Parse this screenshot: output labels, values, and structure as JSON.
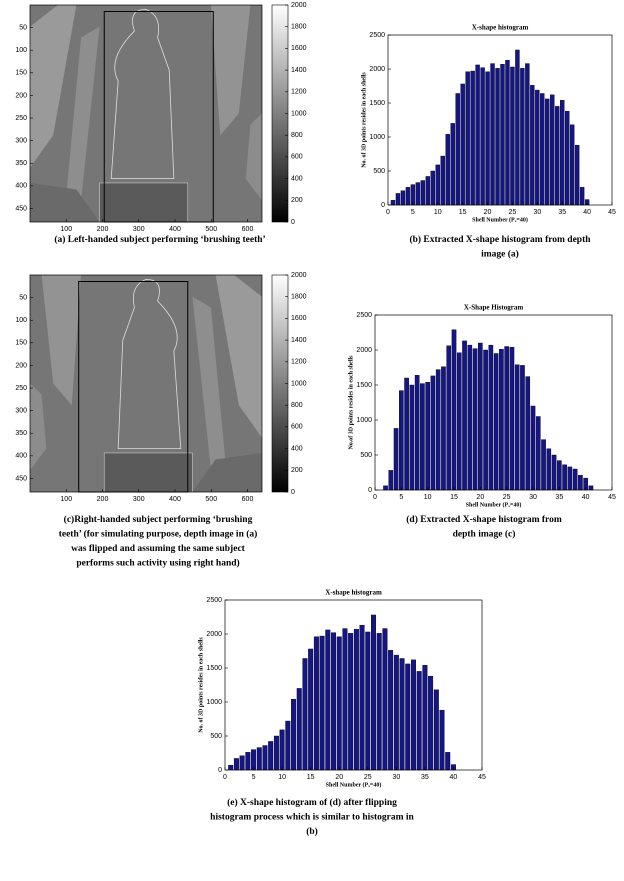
{
  "chart_data": [
    {
      "type": "image",
      "caption": [
        "(a) Left-handed subject performing ‘brushing teeth’"
      ],
      "xlim": [
        0,
        640
      ],
      "ylim": [
        480,
        0
      ],
      "xticks": [
        100,
        200,
        300,
        400,
        500,
        600
      ],
      "yticks": [
        50,
        100,
        150,
        200,
        250,
        300,
        350,
        400,
        450
      ],
      "clim": [
        0,
        2000
      ],
      "cticks": [
        0,
        200,
        400,
        600,
        800,
        1000,
        1200,
        1400,
        1600,
        1800,
        2000
      ],
      "flipped": false
    },
    {
      "type": "bar",
      "title": "X-shape histogram",
      "xlabel": "Shell Number (Pₓ=40)",
      "ylabel": "No. of 3D points resides in each shells",
      "caption": [
        "(b) Extracted X-shape histogram from depth",
        "image (a)"
      ],
      "color": "#15158a",
      "x": [
        1,
        2,
        3,
        4,
        5,
        6,
        7,
        8,
        9,
        10,
        11,
        12,
        13,
        14,
        15,
        16,
        17,
        18,
        19,
        20,
        21,
        22,
        23,
        24,
        25,
        26,
        27,
        28,
        29,
        30,
        31,
        32,
        33,
        34,
        35,
        36,
        37,
        38,
        39,
        40
      ],
      "values": [
        70,
        170,
        210,
        260,
        300,
        330,
        360,
        420,
        500,
        590,
        720,
        1040,
        1200,
        1640,
        1780,
        1960,
        1970,
        2060,
        2020,
        1960,
        2080,
        2010,
        2070,
        2130,
        2030,
        2280,
        2010,
        2080,
        1760,
        1690,
        1640,
        1560,
        1620,
        1450,
        1540,
        1380,
        1180,
        880,
        260,
        80
      ],
      "xlim": [
        0,
        45
      ],
      "ylim": [
        0,
        2500
      ],
      "xticks": [
        0,
        5,
        10,
        15,
        20,
        25,
        30,
        35,
        40,
        45
      ],
      "yticks": [
        0,
        500,
        1000,
        1500,
        2000,
        2500
      ]
    },
    {
      "type": "image",
      "caption": [
        "(c)Right-handed subject performing ‘brushing",
        "teeth’ (for simulating purpose, depth image in (a)",
        "was flipped and assuming the same subject",
        "performs such activity using right hand)"
      ],
      "xlim": [
        0,
        640
      ],
      "ylim": [
        480,
        0
      ],
      "xticks": [
        100,
        200,
        300,
        400,
        500,
        600
      ],
      "yticks": [
        50,
        100,
        150,
        200,
        250,
        300,
        350,
        400,
        450
      ],
      "clim": [
        0,
        2000
      ],
      "cticks": [
        0,
        200,
        400,
        600,
        800,
        1000,
        1200,
        1400,
        1600,
        1800,
        2000
      ],
      "flipped": true
    },
    {
      "type": "bar",
      "title": "X-Shape Histogram",
      "xlabel": "Shell Number (Pₓ=40)",
      "ylabel": "No.of 3D points resides in each shells",
      "caption": [
        "(d) Extracted X-shape histogram from",
        "depth image (c)"
      ],
      "color": "#15158a",
      "x": [
        2,
        3,
        4,
        5,
        6,
        7,
        8,
        9,
        10,
        11,
        12,
        13,
        14,
        15,
        16,
        17,
        18,
        19,
        20,
        21,
        22,
        23,
        24,
        25,
        26,
        27,
        28,
        29,
        30,
        31,
        32,
        33,
        34,
        35,
        36,
        37,
        38,
        39,
        40,
        41
      ],
      "values": [
        60,
        280,
        880,
        1420,
        1600,
        1500,
        1640,
        1520,
        1540,
        1630,
        1720,
        1760,
        2060,
        2290,
        1960,
        2130,
        2070,
        2020,
        2100,
        2000,
        2070,
        1950,
        2010,
        2050,
        2040,
        1790,
        1780,
        1620,
        1200,
        1050,
        720,
        590,
        500,
        420,
        360,
        330,
        300,
        210,
        170,
        60
      ],
      "xlim": [
        0,
        45
      ],
      "ylim": [
        0,
        2500
      ],
      "xticks": [
        0,
        5,
        10,
        15,
        20,
        25,
        30,
        35,
        40,
        45
      ],
      "yticks": [
        0,
        500,
        1000,
        1500,
        2000,
        2500
      ]
    },
    {
      "type": "bar",
      "title": "X-shape histogram",
      "xlabel": "Shell Number (Pₓ=40)",
      "ylabel": "No. of 3D points resides in each shells",
      "caption": [
        "(e) X-shape histogram of (d) after flipping",
        "histogram process which is similar to histogram in",
        "(b)"
      ],
      "color": "#15158a",
      "x": [
        1,
        2,
        3,
        4,
        5,
        6,
        7,
        8,
        9,
        10,
        11,
        12,
        13,
        14,
        15,
        16,
        17,
        18,
        19,
        20,
        21,
        22,
        23,
        24,
        25,
        26,
        27,
        28,
        29,
        30,
        31,
        32,
        33,
        34,
        35,
        36,
        37,
        38,
        39,
        40
      ],
      "values": [
        70,
        170,
        210,
        260,
        300,
        330,
        360,
        420,
        500,
        590,
        720,
        1040,
        1200,
        1640,
        1780,
        1960,
        1970,
        2060,
        2020,
        1960,
        2080,
        2010,
        2070,
        2130,
        2030,
        2280,
        2010,
        2080,
        1760,
        1690,
        1640,
        1560,
        1620,
        1450,
        1540,
        1380,
        1180,
        880,
        260,
        80
      ],
      "xlim": [
        0,
        45
      ],
      "ylim": [
        0,
        2500
      ],
      "xticks": [
        0,
        5,
        10,
        15,
        20,
        25,
        30,
        35,
        40,
        45
      ],
      "yticks": [
        0,
        500,
        1000,
        1500,
        2000,
        2500
      ]
    }
  ]
}
